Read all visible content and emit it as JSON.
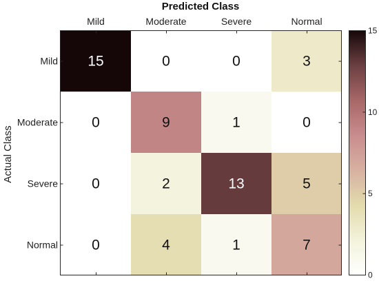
{
  "chart_data": {
    "type": "heatmap",
    "title": "Predicted Class",
    "xlabel": "Predicted Class",
    "ylabel": "Actual Class",
    "x_categories": [
      "Mild",
      "Moderate",
      "Severe",
      "Normal"
    ],
    "y_categories": [
      "Mild",
      "Moderate",
      "Severe",
      "Normal"
    ],
    "values": [
      [
        15,
        0,
        0,
        3
      ],
      [
        0,
        9,
        1,
        0
      ],
      [
        0,
        2,
        13,
        5
      ],
      [
        0,
        4,
        1,
        7
      ]
    ],
    "colorbar": {
      "min": 0,
      "max": 15,
      "ticks": [
        0,
        5,
        10,
        15
      ]
    },
    "colormap": [
      "#ffffff",
      "#f3f3dc",
      "#e3dbad",
      "#d7b1a1",
      "#c98c8e",
      "#a86767",
      "#6b3f42",
      "#150708"
    ]
  }
}
